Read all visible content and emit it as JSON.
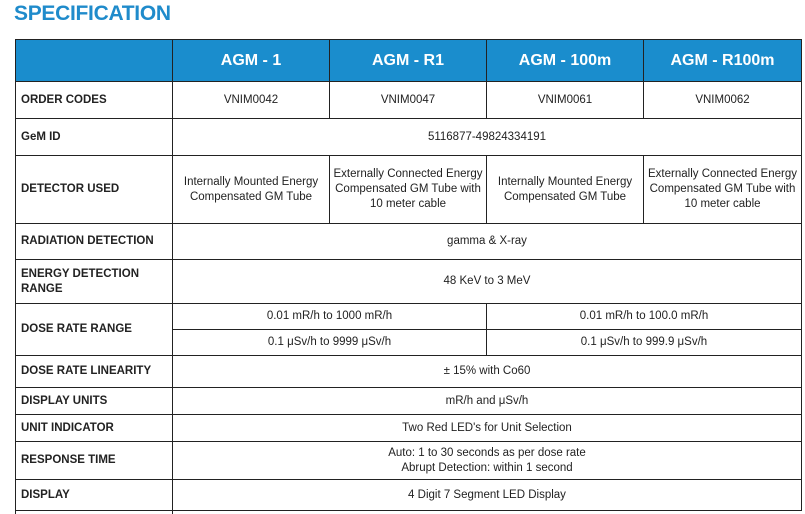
{
  "title": "SPECIFICATION",
  "colors": {
    "header_bg": "#1a8dcd",
    "title": "#1f8bcb"
  },
  "models": [
    "AGM - 1",
    "AGM - R1",
    "AGM - 100m",
    "AGM - R100m"
  ],
  "rows": {
    "order_codes": {
      "label": "ORDER CODES",
      "values": [
        "VNIM0042",
        "VNIM0047",
        "VNIM0061",
        "VNIM0062"
      ]
    },
    "gem_id": {
      "label": "GeM ID",
      "value": "5116877-49824334191"
    },
    "detector": {
      "label": "DETECTOR USED",
      "values": [
        "Internally Mounted Energy Compensated GM Tube",
        "Externally Connected Energy Compensated GM Tube with 10 meter cable",
        "Internally Mounted Energy Compensated GM Tube",
        "Externally Connected Energy Compensated GM Tube with 10 meter cable"
      ]
    },
    "radiation": {
      "label": "RADIATION DETECTION",
      "value": "gamma & X-ray"
    },
    "energy": {
      "label": "ENERGY DETECTION RANGE",
      "value": "48 KeV to 3 MeV"
    },
    "dose_rate": {
      "label": "DOSE RATE RANGE",
      "a_mr": "0.01 mR/h to 1000 mR/h",
      "b_mr": "0.01 mR/h to 100.0 mR/h",
      "a_sv": "0.1 μSv/h to 9999 μSv/h",
      "b_sv": "0.1 μSv/h to 999.9 μSv/h"
    },
    "linearity": {
      "label": "DOSE RATE LINEARITY",
      "value": "± 15% with Co60"
    },
    "units": {
      "label": "DISPLAY UNITS",
      "value": "mR/h and μSv/h"
    },
    "indicator": {
      "label": "UNIT INDICATOR",
      "value": "Two Red LED's for Unit Selection"
    },
    "response": {
      "label": "RESPONSE TIME",
      "line1": "Auto: 1 to 30 seconds as per dose rate",
      "line2": "Abrupt Detection: within 1 second"
    },
    "display": {
      "label": "DISPLAY",
      "value": "4 Digit 7 Segment LED Display"
    }
  }
}
